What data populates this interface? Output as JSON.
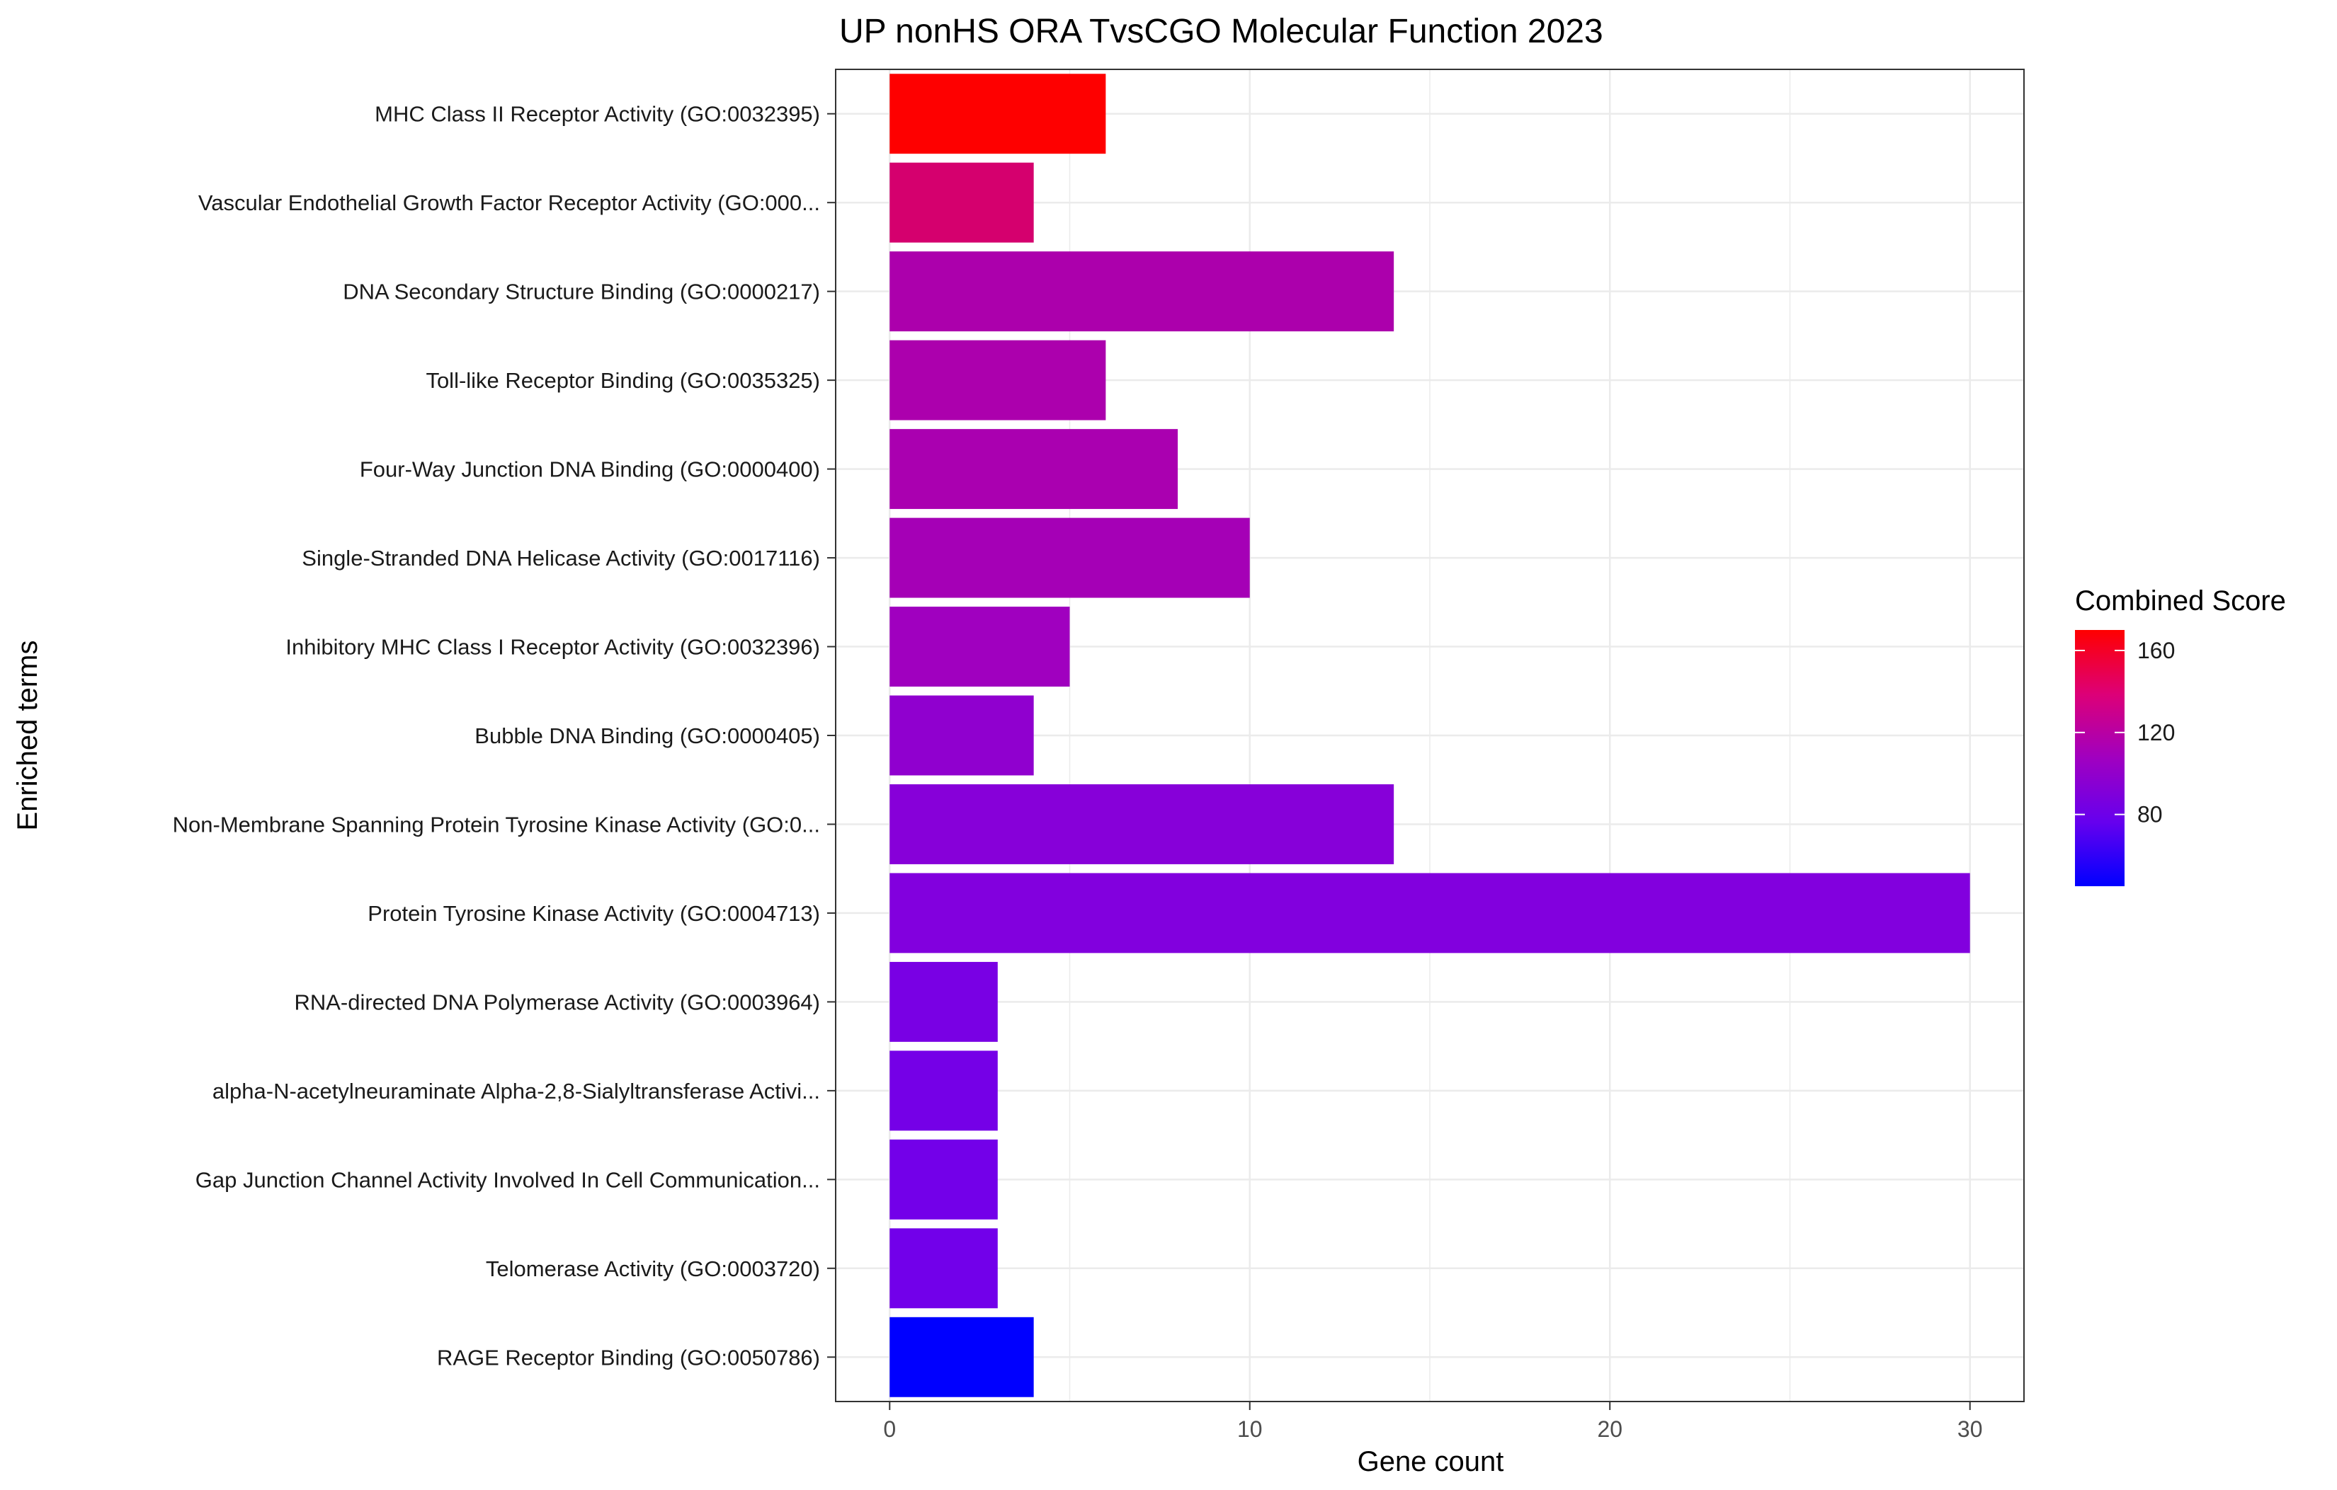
{
  "chart_data": {
    "type": "bar",
    "orientation": "horizontal",
    "title": "UP nonHS ORA TvsCGO Molecular Function 2023",
    "xlabel": "Gene count",
    "ylabel": "Enriched terms",
    "xlim": [
      -1.5,
      31.5
    ],
    "x_ticks": [
      0,
      10,
      20,
      30
    ],
    "x_tick_labels": [
      "0",
      "10",
      "20",
      "30"
    ],
    "grid": true,
    "categories": [
      "MHC Class II Receptor Activity (GO:0032395)",
      "Vascular Endothelial Growth Factor Receptor Activity (GO:000...",
      "DNA Secondary Structure Binding (GO:0000217)",
      "Toll-like Receptor Binding (GO:0035325)",
      "Four-Way Junction DNA Binding (GO:0000400)",
      "Single-Stranded DNA Helicase Activity (GO:0017116)",
      "Inhibitory MHC Class I Receptor Activity (GO:0032396)",
      "Bubble DNA Binding (GO:0000405)",
      "Non-Membrane Spanning Protein Tyrosine Kinase Activity (GO:0...",
      "Protein Tyrosine Kinase Activity (GO:0004713)",
      "RNA-directed DNA Polymerase Activity (GO:0003964)",
      "alpha-N-acetylneuraminate Alpha-2,8-Sialyltransferase Activi...",
      "Gap Junction Channel Activity Involved In Cell Communication...",
      "Telomerase Activity (GO:0003720)",
      "RAGE Receptor Binding (GO:0050786)"
    ],
    "values": [
      6,
      4,
      14,
      6,
      8,
      10,
      5,
      4,
      14,
      30,
      3,
      3,
      3,
      3,
      4
    ],
    "combined_score": [
      170,
      125,
      108,
      106,
      105,
      103,
      101,
      92,
      88,
      86,
      80,
      78,
      77,
      77,
      45
    ],
    "colors": [
      "#fe0000",
      "#d5006e",
      "#ac00ac",
      "#ac00ad",
      "#aa00b0",
      "#a500b6",
      "#a000bf",
      "#9000cf",
      "#8700d9",
      "#8200de",
      "#7900e4",
      "#7500e7",
      "#7300e9",
      "#7200ea",
      "#0000ff"
    ],
    "legend": {
      "title": "Combined Score",
      "position": "right",
      "range": [
        45,
        170
      ],
      "ticks": [
        80,
        120,
        160
      ],
      "tick_labels": [
        "80",
        "120",
        "160"
      ],
      "low_color": "#0000ff",
      "high_color": "#ff0000"
    }
  }
}
